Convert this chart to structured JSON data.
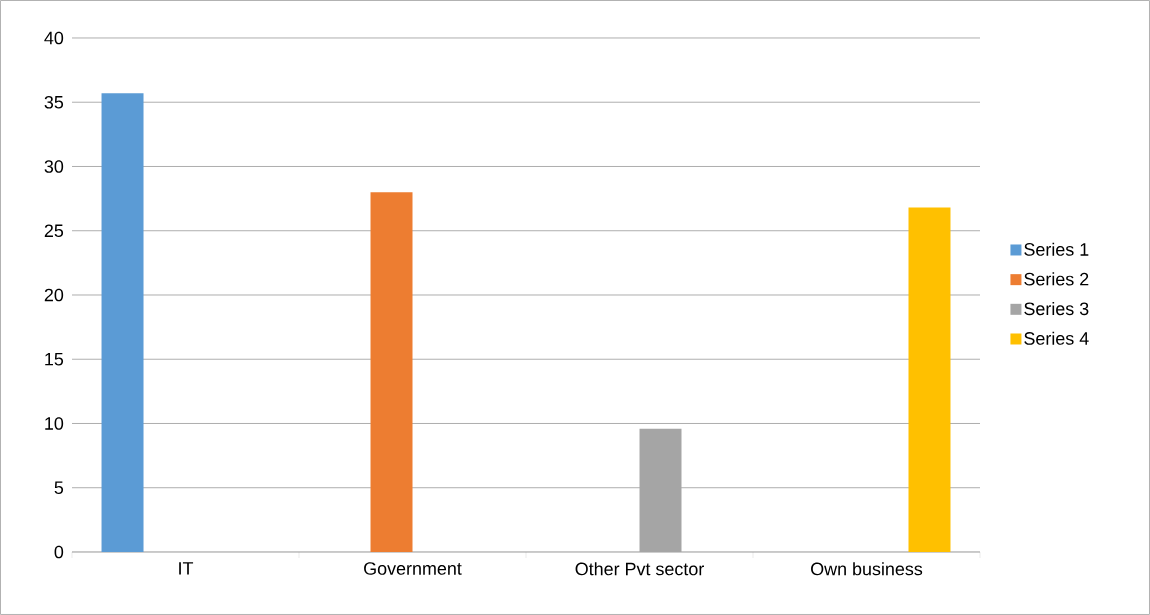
{
  "chart_data": {
    "type": "bar",
    "categories": [
      "IT",
      "Government",
      "Other Pvt sector",
      "Own business"
    ],
    "series": [
      {
        "name": "Series 1",
        "color": "#5b9bd5",
        "values": [
          35.7,
          null,
          null,
          null
        ]
      },
      {
        "name": "Series 2",
        "color": "#ed7d31",
        "values": [
          null,
          28,
          null,
          null
        ]
      },
      {
        "name": "Series 3",
        "color": "#a5a5a5",
        "values": [
          null,
          null,
          9.6,
          null
        ]
      },
      {
        "name": "Series 4",
        "color": "#ffc000",
        "values": [
          null,
          null,
          null,
          26.8
        ]
      }
    ],
    "ylim": [
      0,
      40
    ],
    "yticks": [
      0,
      5,
      10,
      15,
      20,
      25,
      30,
      35,
      40
    ],
    "grid": "y",
    "legend": "right"
  }
}
